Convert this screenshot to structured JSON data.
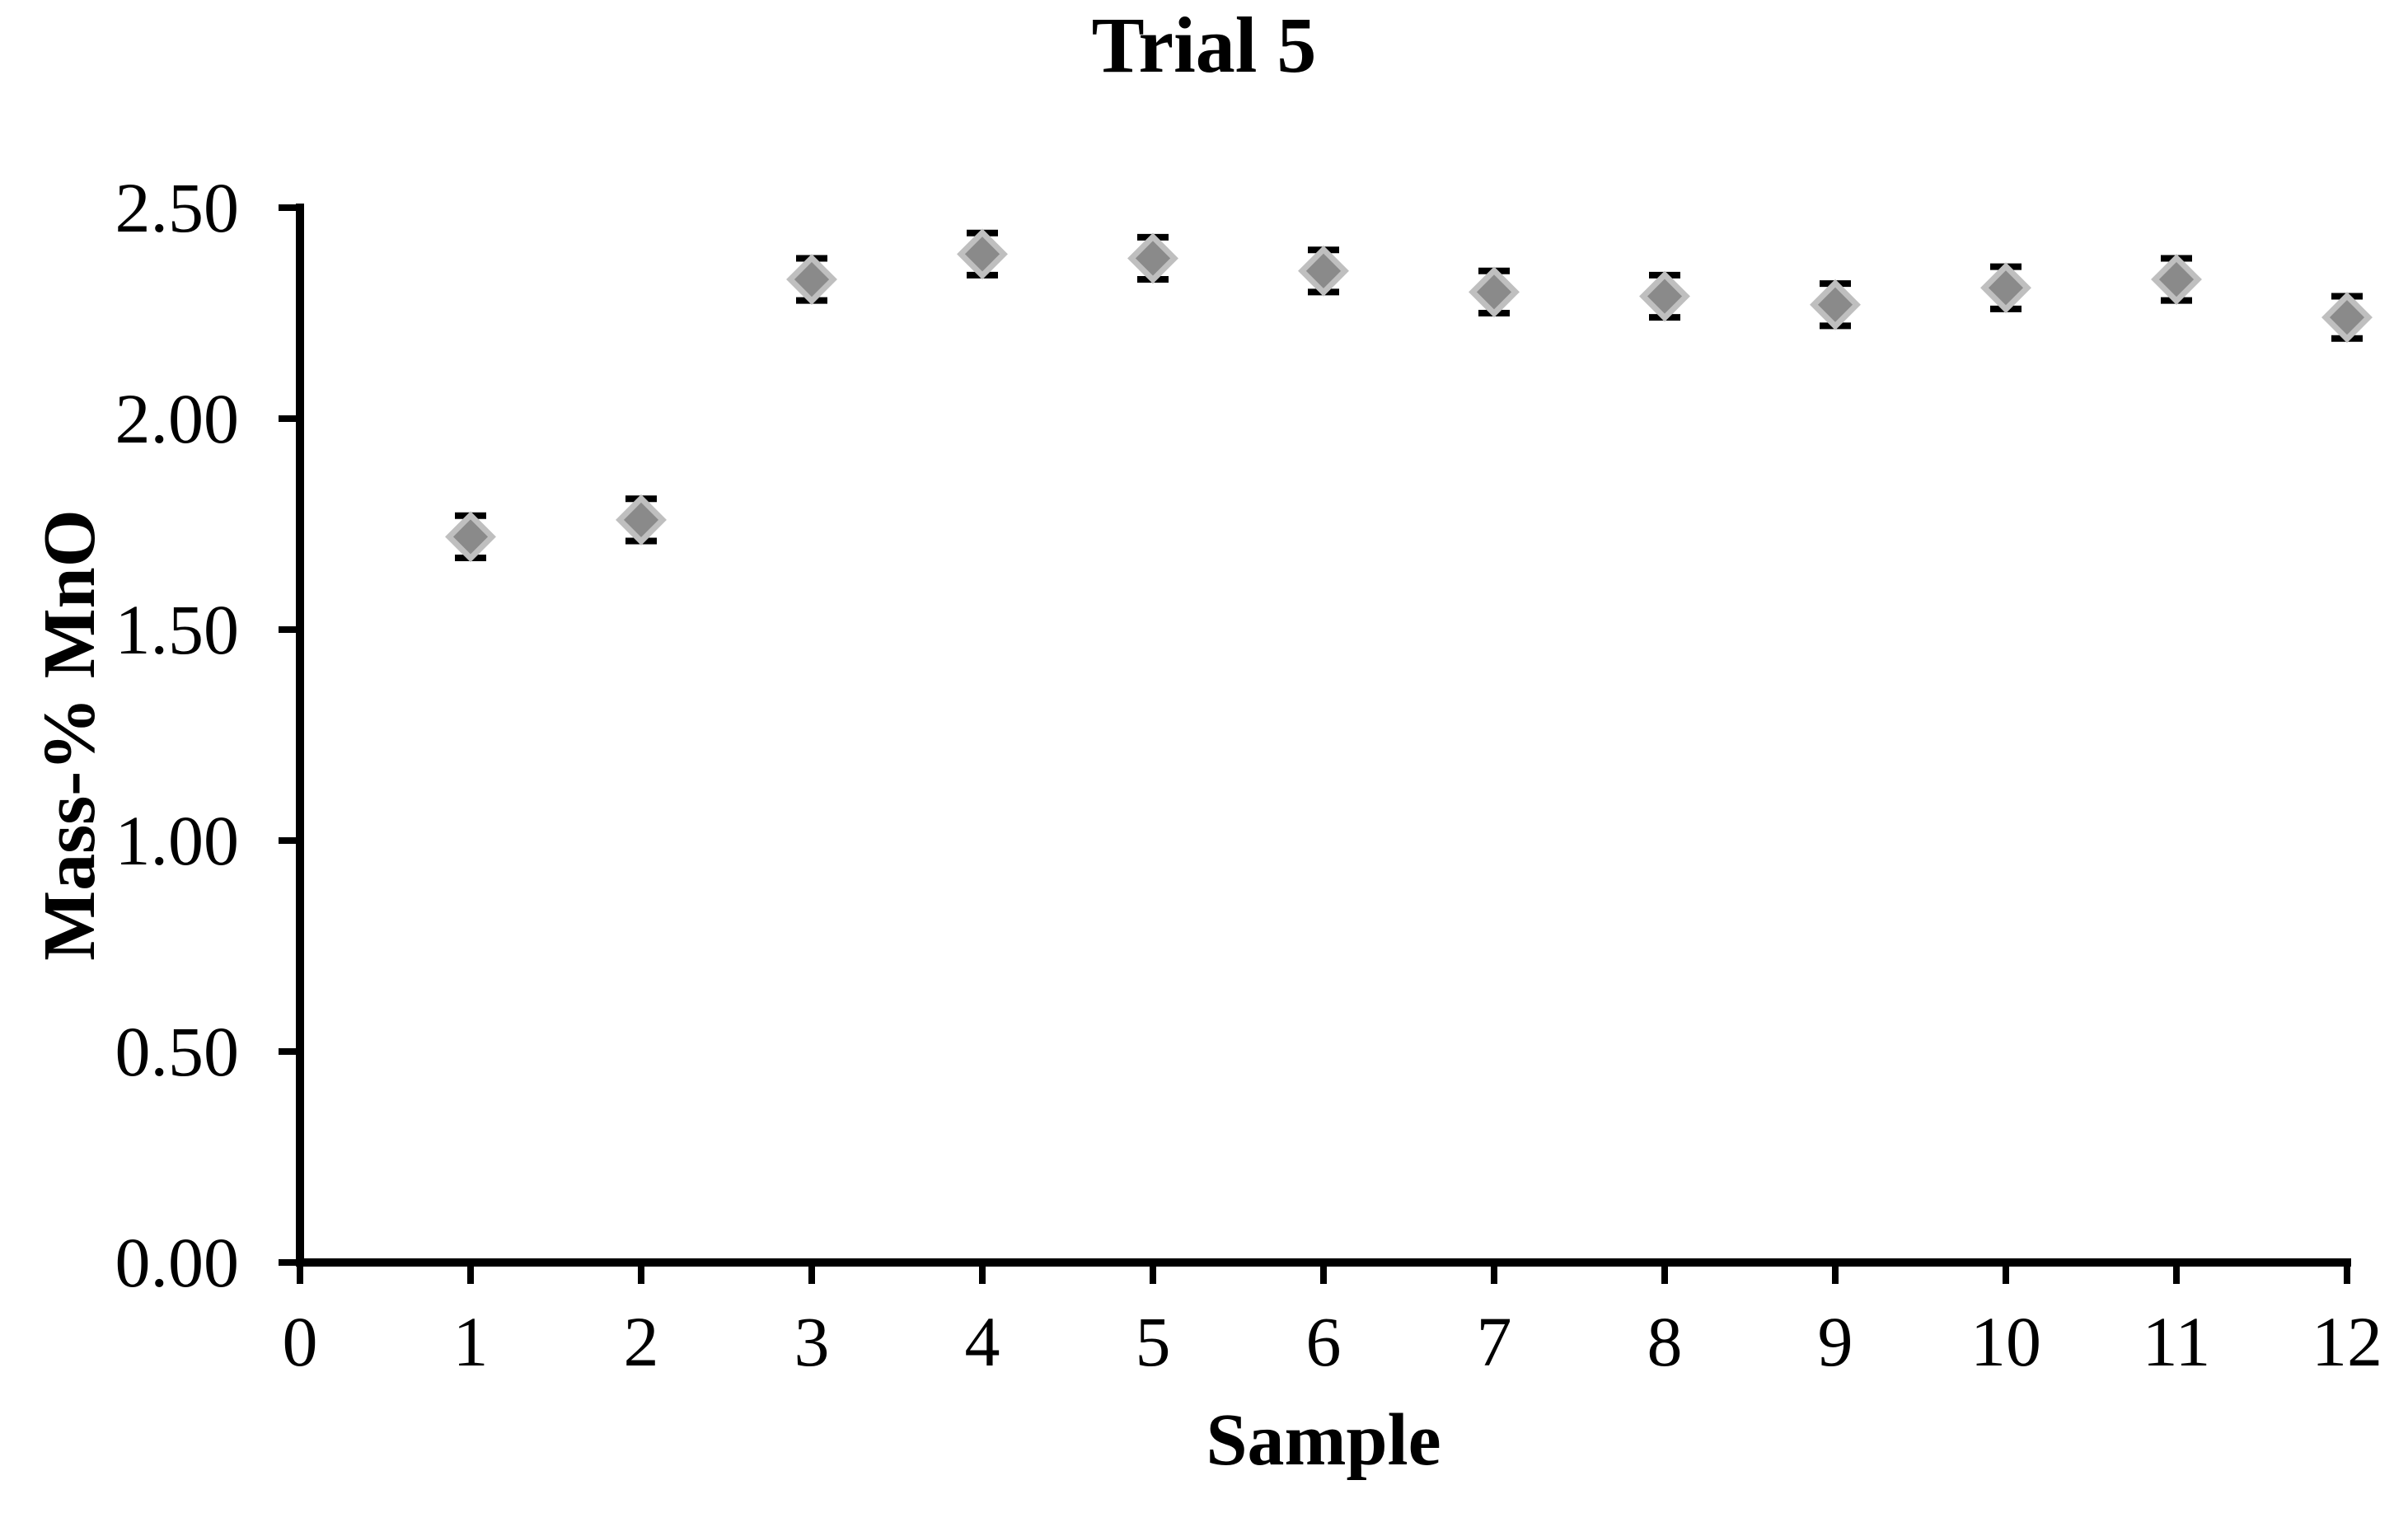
{
  "chart_data": {
    "type": "scatter",
    "title": "Trial 5",
    "xlabel": "Sample",
    "ylabel": "Mass-% MnO",
    "x": [
      1,
      2,
      3,
      4,
      5,
      6,
      7,
      8,
      9,
      10,
      11,
      12
    ],
    "y": [
      1.72,
      1.76,
      2.33,
      2.39,
      2.38,
      2.35,
      2.3,
      2.29,
      2.27,
      2.31,
      2.33,
      2.24
    ],
    "yerr": 0.05,
    "xlim": [
      0,
      12
    ],
    "ylim": [
      0,
      2.5
    ],
    "xticks": [
      "0",
      "1",
      "2",
      "3",
      "4",
      "5",
      "6",
      "7",
      "8",
      "9",
      "10",
      "11",
      "12"
    ],
    "yticks": [
      "0.00",
      "0.50",
      "1.00",
      "1.50",
      "2.00",
      "2.50"
    ],
    "grid": false,
    "legend": "none",
    "marker_shape": "diamond",
    "colors": {
      "marker_fill": "#8a8a8a",
      "marker_border": "#bfbfbf",
      "error_bar": "#000000",
      "axis": "#000000",
      "text": "#000000",
      "background": "#ffffff"
    }
  }
}
